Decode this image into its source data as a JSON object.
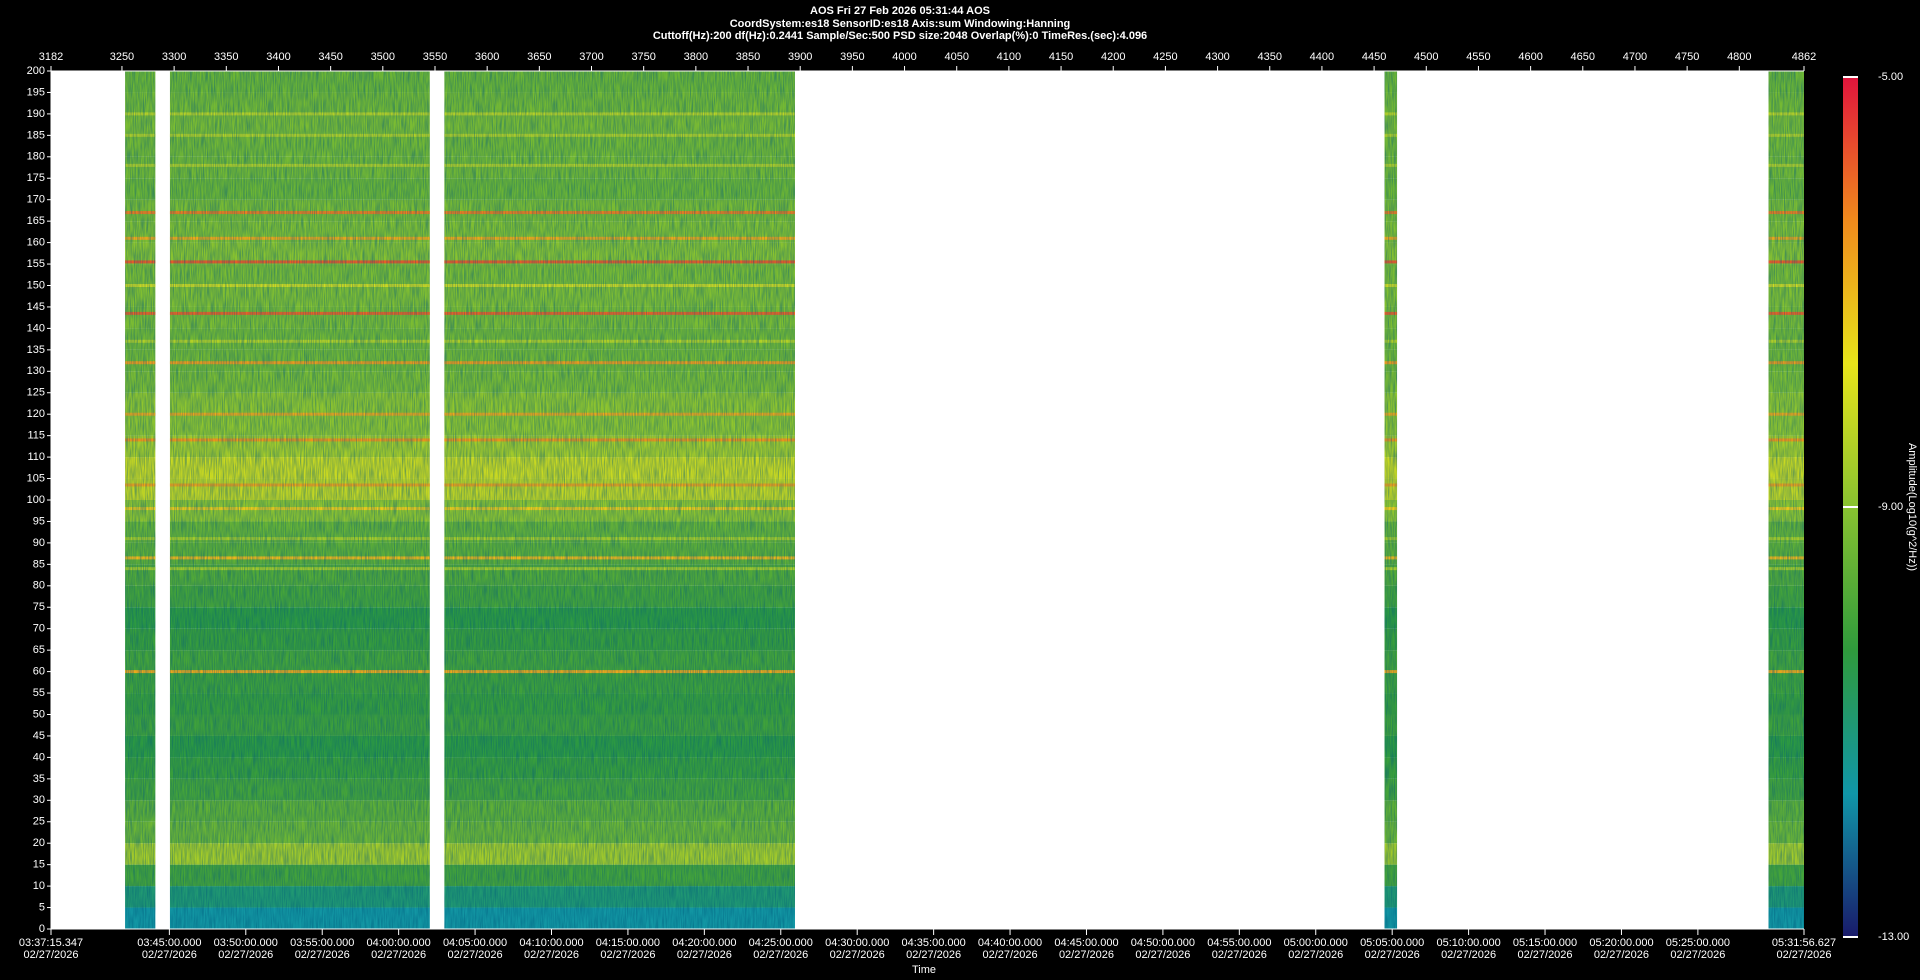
{
  "chart_data": {
    "type": "spectrogram",
    "title_lines": [
      "AOS  Fri 27 Feb 2026 05:31:44  AOS",
      "CoordSystem:es18   SensorID:es18   Axis:sum   Windowing:Hanning",
      "Cuttoff(Hz):200      df(Hz):0.2441      Sample/Sec:500      PSD size:2048      Overlap(%):0      TimeRes.(sec):4.096"
    ],
    "xlabel": "Time",
    "colorbar_label": "Amplitude(Log10(g^2/Hz))",
    "xlim": [
      3182,
      4862
    ],
    "xticks": [
      3182,
      3250,
      3300,
      3350,
      3400,
      3450,
      3500,
      3550,
      3600,
      3650,
      3700,
      3750,
      3800,
      3850,
      3900,
      3950,
      4000,
      4050,
      4100,
      4150,
      4200,
      4250,
      4300,
      4350,
      4400,
      4450,
      4500,
      4550,
      4600,
      4650,
      4700,
      4750,
      4800,
      4862
    ],
    "time_ticks": [
      {
        "value": 3182,
        "label": "03:37:15.347"
      },
      {
        "value": 3295.44,
        "label": "03:45:00.000"
      },
      {
        "value": 3368.68,
        "label": "03:50:00.000"
      },
      {
        "value": 3441.93,
        "label": "03:55:00.000"
      },
      {
        "value": 3515.17,
        "label": "04:00:00.000"
      },
      {
        "value": 3588.41,
        "label": "04:05:00.000"
      },
      {
        "value": 3661.65,
        "label": "04:10:00.000"
      },
      {
        "value": 3734.9,
        "label": "04:15:00.000"
      },
      {
        "value": 3808.14,
        "label": "04:20:00.000"
      },
      {
        "value": 3881.38,
        "label": "04:25:00.000"
      },
      {
        "value": 3954.63,
        "label": "04:30:00.000"
      },
      {
        "value": 4027.87,
        "label": "04:35:00.000"
      },
      {
        "value": 4101.11,
        "label": "04:40:00.000"
      },
      {
        "value": 4174.36,
        "label": "04:45:00.000"
      },
      {
        "value": 4247.6,
        "label": "04:50:00.000"
      },
      {
        "value": 4320.84,
        "label": "04:55:00.000"
      },
      {
        "value": 4394.08,
        "label": "05:00:00.000"
      },
      {
        "value": 4467.33,
        "label": "05:05:00.000"
      },
      {
        "value": 4540.57,
        "label": "05:10:00.000"
      },
      {
        "value": 4613.81,
        "label": "05:15:00.000"
      },
      {
        "value": 4687.06,
        "label": "05:20:00.000"
      },
      {
        "value": 4760.3,
        "label": "05:25:00.000"
      },
      {
        "value": 4862,
        "label": "05:31:56.627"
      }
    ],
    "tick_date": "02/27/2026",
    "ylim": [
      0,
      200
    ],
    "yticks": [
      0,
      5,
      10,
      15,
      20,
      25,
      30,
      35,
      40,
      45,
      50,
      55,
      60,
      65,
      70,
      75,
      80,
      85,
      90,
      95,
      100,
      105,
      110,
      115,
      120,
      125,
      130,
      135,
      140,
      145,
      150,
      155,
      160,
      165,
      170,
      175,
      180,
      185,
      190,
      195,
      200
    ],
    "clim": [
      -13,
      -5
    ],
    "cticks": [
      {
        "value": -13,
        "label": "-13.00"
      },
      {
        "value": -9,
        "label": "-9.00"
      },
      {
        "value": -5,
        "label": "-5.00"
      }
    ],
    "colormap": [
      "#191a6a",
      "#1096a8",
      "#2f9a3c",
      "#88c230",
      "#e8e41a",
      "#f08a1c",
      "#e0143c"
    ],
    "segments": [
      [
        3253,
        3282
      ],
      [
        3296,
        3545
      ],
      [
        3559,
        3895
      ],
      [
        4460,
        4472
      ],
      [
        4828,
        4862
      ]
    ],
    "profile": {
      "freqs": [
        0,
        5,
        10,
        15,
        20,
        25,
        30,
        35,
        40,
        45,
        50,
        55,
        60,
        65,
        70,
        75,
        80,
        85,
        90,
        95,
        100,
        105,
        110,
        115,
        120,
        125,
        130,
        135,
        140,
        145,
        150,
        155,
        160,
        165,
        170,
        175,
        180,
        185,
        190,
        195
      ],
      "levels": [
        -11.6,
        -11.0,
        -10.0,
        -8.6,
        -9.4,
        -9.6,
        -10.0,
        -10.2,
        -10.4,
        -10.1,
        -10.2,
        -10.1,
        -10.0,
        -10.2,
        -10.4,
        -10.0,
        -9.8,
        -9.6,
        -9.5,
        -8.9,
        -8.2,
        -8.1,
        -8.6,
        -8.9,
        -8.9,
        -9.2,
        -9.3,
        -9.3,
        -9.2,
        -9.1,
        -9.2,
        -9.0,
        -9.1,
        -9.2,
        -9.4,
        -9.3,
        -9.3,
        -9.2,
        -9.3,
        -9.4
      ]
    },
    "lines": {
      "freqs": [
        167,
        161,
        155.5,
        143.5,
        132,
        120,
        114,
        103.5,
        98,
        86.5,
        60,
        190,
        185,
        178,
        150,
        137,
        91,
        84
      ],
      "levels": [
        -6.2,
        -6.8,
        -5.8,
        -5.9,
        -6.6,
        -6.8,
        -6.5,
        -6.7,
        -7.3,
        -7.0,
        -6.8,
        -8.3,
        -8.4,
        -8.4,
        -8.0,
        -8.4,
        -8.6,
        -8.6
      ]
    }
  }
}
